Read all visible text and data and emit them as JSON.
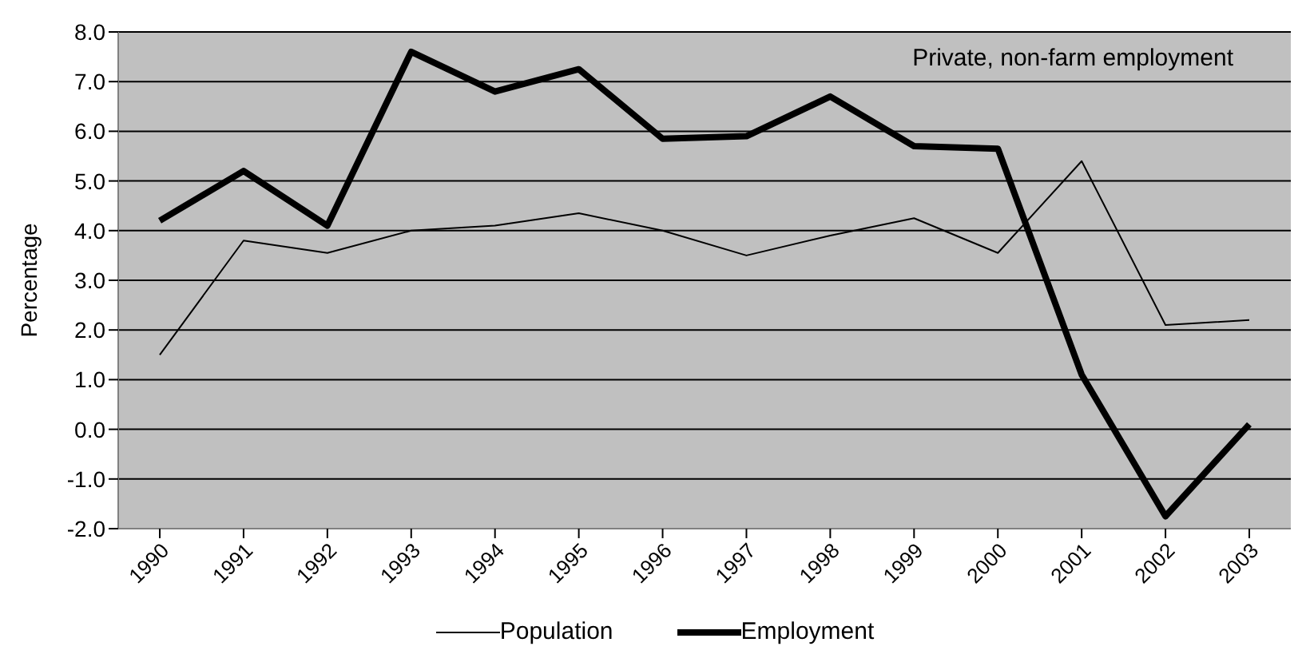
{
  "chart_data": {
    "type": "line",
    "ylabel": "Percentage",
    "annotations": [
      "Private, non-farm employment"
    ],
    "categories": [
      "1990",
      "1991",
      "1992",
      "1993",
      "1994",
      "1995",
      "1996",
      "1997",
      "1998",
      "1999",
      "2000",
      "2001",
      "2002",
      "2003"
    ],
    "series": [
      {
        "name": "Population",
        "color": "#000000",
        "values": [
          1.5,
          3.8,
          3.55,
          4.0,
          4.1,
          4.35,
          4.0,
          3.5,
          3.9,
          4.25,
          3.55,
          5.4,
          2.1,
          2.2
        ]
      },
      {
        "name": "Employment",
        "color": "#000000",
        "values": [
          4.2,
          5.2,
          4.1,
          7.6,
          6.8,
          7.25,
          5.85,
          5.9,
          6.7,
          5.7,
          5.65,
          1.1,
          -1.75,
          0.1
        ]
      }
    ],
    "ylim": [
      -2,
      8
    ],
    "yticks": [
      {
        "value": -2,
        "label": "-2.0"
      },
      {
        "value": -1,
        "label": "-1.0"
      },
      {
        "value": 0,
        "label": "0.0"
      },
      {
        "value": 1,
        "label": "1.0"
      },
      {
        "value": 2,
        "label": "2.0"
      },
      {
        "value": 3,
        "label": "3.0"
      },
      {
        "value": 4,
        "label": "4.0"
      },
      {
        "value": 5,
        "label": "5.0"
      },
      {
        "value": 6,
        "label": "6.0"
      },
      {
        "value": 7,
        "label": "7.0"
      },
      {
        "value": 8,
        "label": "8.0"
      }
    ],
    "grid": "y",
    "legend": "bottom",
    "marker": "none",
    "line_style": "solid"
  }
}
